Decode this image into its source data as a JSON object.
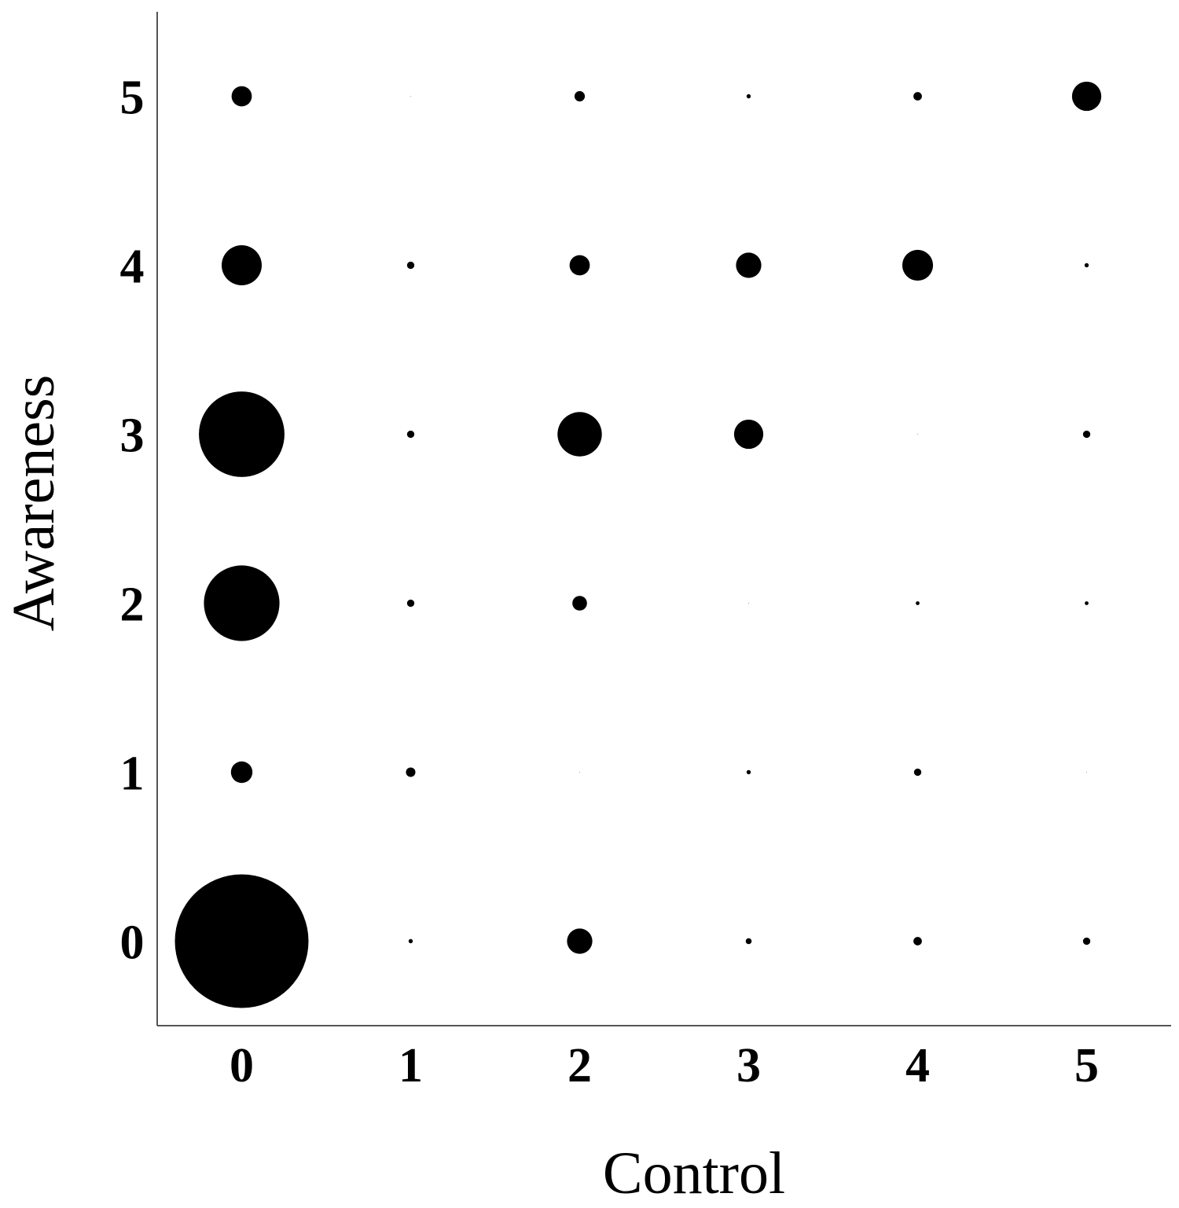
{
  "chart_data": {
    "type": "scatter",
    "subtype": "bubble",
    "title": "",
    "xlabel": "Control",
    "ylabel": "Awareness",
    "x_categories": [
      "0",
      "1",
      "2",
      "3",
      "4",
      "5"
    ],
    "y_categories": [
      "0",
      "1",
      "2",
      "3",
      "4",
      "5"
    ],
    "xlim": [
      -0.5,
      5.5
    ],
    "ylim": [
      -0.5,
      5.5
    ],
    "grid": false,
    "legend": "none",
    "marker_color": "#000000",
    "size_encoding": "area",
    "points": [
      {
        "x": 0,
        "y": 0,
        "size": 100
      },
      {
        "x": 1,
        "y": 0,
        "size": 0.1
      },
      {
        "x": 2,
        "y": 0,
        "size": 3.6
      },
      {
        "x": 3,
        "y": 0,
        "size": 0.2
      },
      {
        "x": 4,
        "y": 0,
        "size": 0.4
      },
      {
        "x": 5,
        "y": 0,
        "size": 0.3
      },
      {
        "x": 0,
        "y": 1,
        "size": 2.6
      },
      {
        "x": 1,
        "y": 1,
        "size": 0.5
      },
      {
        "x": 2,
        "y": 1,
        "size": 0.005
      },
      {
        "x": 3,
        "y": 1,
        "size": 0.1
      },
      {
        "x": 4,
        "y": 1,
        "size": 0.3
      },
      {
        "x": 5,
        "y": 1,
        "size": 0.005
      },
      {
        "x": 0,
        "y": 2,
        "size": 32
      },
      {
        "x": 1,
        "y": 2,
        "size": 0.3
      },
      {
        "x": 2,
        "y": 2,
        "size": 1.2
      },
      {
        "x": 3,
        "y": 2,
        "size": 0.005
      },
      {
        "x": 4,
        "y": 2,
        "size": 0.08
      },
      {
        "x": 5,
        "y": 2,
        "size": 0.08
      },
      {
        "x": 0,
        "y": 3,
        "size": 41
      },
      {
        "x": 1,
        "y": 3,
        "size": 0.3
      },
      {
        "x": 2,
        "y": 3,
        "size": 11
      },
      {
        "x": 3,
        "y": 3,
        "size": 4.8
      },
      {
        "x": 4,
        "y": 3,
        "size": 0.005
      },
      {
        "x": 5,
        "y": 3,
        "size": 0.3
      },
      {
        "x": 0,
        "y": 4,
        "size": 9.0
      },
      {
        "x": 1,
        "y": 4,
        "size": 0.3
      },
      {
        "x": 2,
        "y": 4,
        "size": 2.3
      },
      {
        "x": 3,
        "y": 4,
        "size": 3.6
      },
      {
        "x": 4,
        "y": 4,
        "size": 5.3
      },
      {
        "x": 5,
        "y": 4,
        "size": 0.1
      },
      {
        "x": 0,
        "y": 5,
        "size": 2.3
      },
      {
        "x": 1,
        "y": 5,
        "size": 0.005
      },
      {
        "x": 2,
        "y": 5,
        "size": 0.6
      },
      {
        "x": 3,
        "y": 5,
        "size": 0.1
      },
      {
        "x": 4,
        "y": 5,
        "size": 0.4
      },
      {
        "x": 5,
        "y": 5,
        "size": 4.8
      }
    ]
  }
}
